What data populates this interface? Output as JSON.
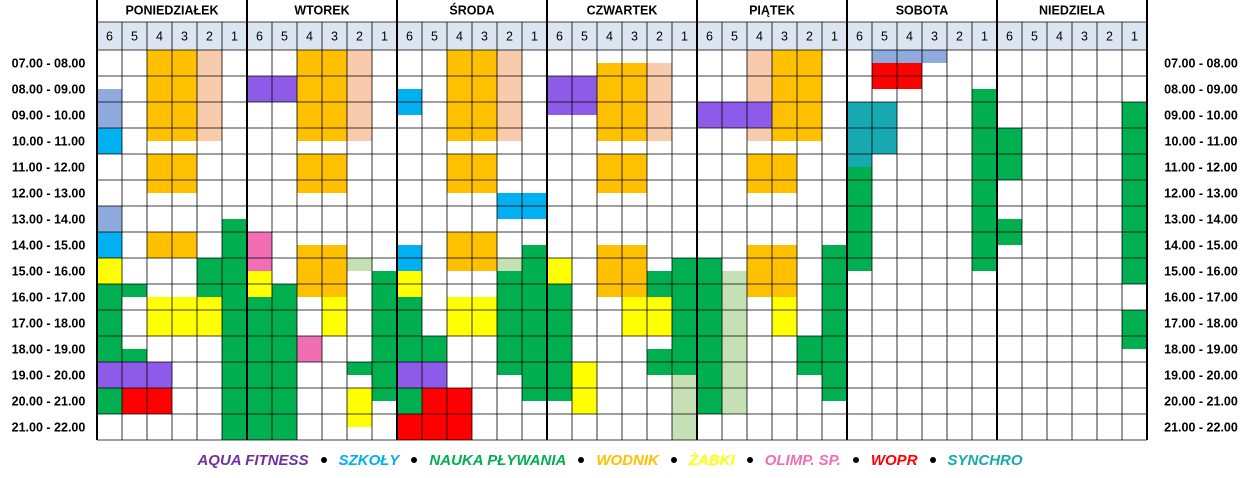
{
  "days": [
    "PONIEDZIAŁEK",
    "WTOREK",
    "ŚRODA",
    "CZWARTEK",
    "PIĄTEK",
    "SOBOTA",
    "NIEDZIELA"
  ],
  "lanes": [
    6,
    5,
    4,
    3,
    2,
    1
  ],
  "times": [
    "07.00 - 08.00",
    "08.00 - 09.00",
    "09.00 - 10.00",
    "10.00 - 11.00",
    "11.00 - 12.00",
    "12.00 - 13.00",
    "13.00 - 14.00",
    "14.00 - 15.00",
    "15.00 - 16.00",
    "16.00 - 17.00",
    "17.00 - 18.00",
    "18.00 - 19.00",
    "19.00 - 20.00",
    "20.00 - 21.00",
    "21.00 - 22.00"
  ],
  "legend": [
    {
      "label": "AQUA FITNESS",
      "color": "#7030a0"
    },
    {
      "label": "SZKOŁY",
      "color": "#00b0f0"
    },
    {
      "label": "NAUKA PŁYWANIA",
      "color": "#00b050"
    },
    {
      "label": "WODNIK",
      "color": "#ffc000"
    },
    {
      "label": "ŻABKI",
      "color": "#ffff00"
    },
    {
      "label": "OLIMP. SP.",
      "color": "#f06eb4"
    },
    {
      "label": "WOPR",
      "color": "#ff0000"
    },
    {
      "label": "SYNCHRO",
      "color": "#17a9b0"
    }
  ]
}
